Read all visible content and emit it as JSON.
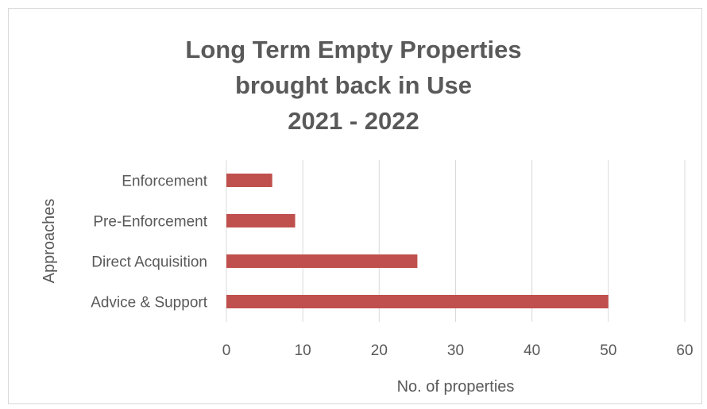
{
  "chart_data": {
    "type": "bar",
    "orientation": "horizontal",
    "title_lines": [
      "Long Term Empty Properties",
      "brought back in Use",
      "2021 - 2022"
    ],
    "categories": [
      "Enforcement",
      "Pre-Enforcement",
      "Direct Acquisition",
      "Advice & Support"
    ],
    "values": [
      6,
      9,
      25,
      50
    ],
    "xlabel": "No. of properties",
    "ylabel": "Approaches",
    "xlim": [
      0,
      60
    ],
    "xticks": [
      "0",
      "10",
      "20",
      "30",
      "40",
      "50",
      "60"
    ],
    "bar_color": "#c0504d",
    "grid": "vertical",
    "legend": "none"
  }
}
